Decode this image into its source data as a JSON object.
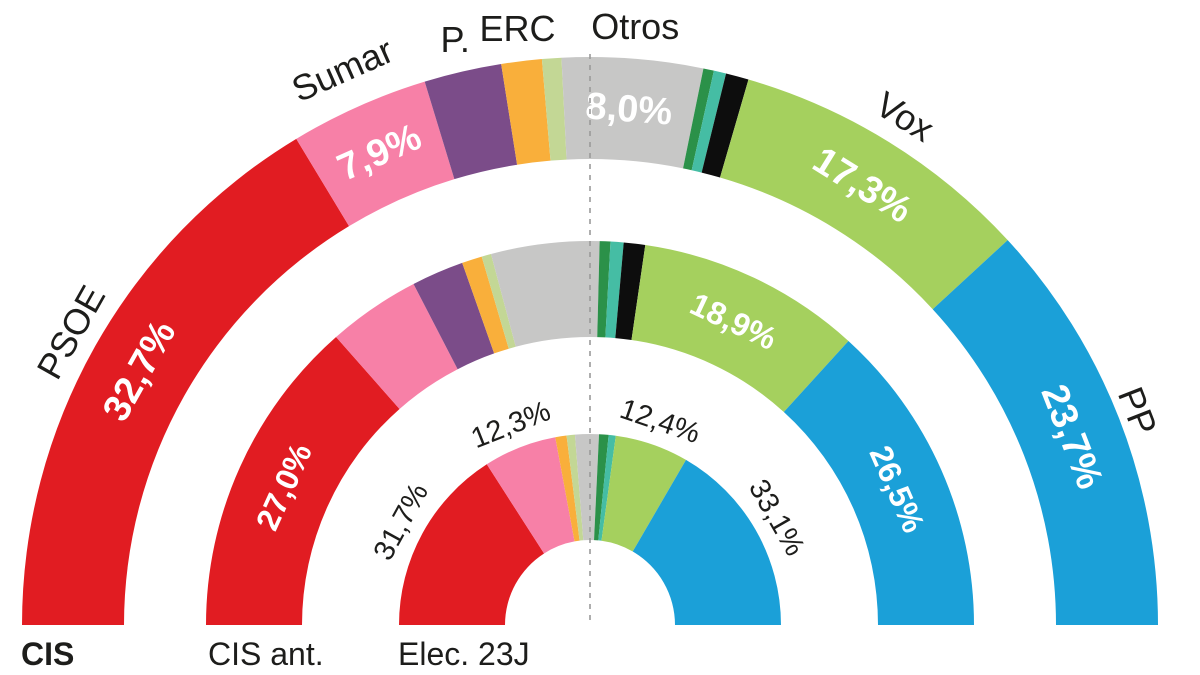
{
  "chart_data": {
    "type": "nested-half-donut",
    "unit": "%",
    "decimal_separator": ",",
    "divider": {
      "style": "dashed",
      "color": "#9a9a9a",
      "position": "50%"
    },
    "colors": {
      "psoe": "#e11c22",
      "sumar": "#f780a7",
      "podemos": "#7b4c89",
      "erc": "#f9af3b",
      "lightgreen": "#c3d795",
      "otros": "#c7c7c6",
      "darkgreen": "#2b9149",
      "teal": "#45bda4",
      "black": "#0d0d0d",
      "vox": "#a5d05e",
      "pp": "#1ba0d8",
      "label_black": "#1d1d1b",
      "label_white": "#ffffff"
    },
    "party_labels": [
      {
        "party": "psoe",
        "text": "PSOE"
      },
      {
        "party": "sumar",
        "text": "Sumar"
      },
      {
        "party": "podemos",
        "text": "P."
      },
      {
        "party": "erc",
        "text": "ERC"
      },
      {
        "party": "otros",
        "text": "Otros"
      },
      {
        "party": "vox",
        "text": "Vox"
      },
      {
        "party": "pp",
        "text": "PP"
      }
    ],
    "rings": [
      {
        "id": "cis",
        "label": "CIS",
        "label_bold": true,
        "segments": [
          {
            "party": "psoe",
            "color_key": "psoe",
            "value": 32.7,
            "label": "32,7%",
            "label_pos": "inside"
          },
          {
            "party": "sumar",
            "color_key": "sumar",
            "value": 7.9,
            "label": "7,9%",
            "label_pos": "inside"
          },
          {
            "party": "podemos",
            "color_key": "podemos",
            "value": 4.4
          },
          {
            "party": "erc",
            "color_key": "erc",
            "value": 2.3
          },
          {
            "party": "",
            "color_key": "lightgreen",
            "value": 1.1
          },
          {
            "party": "otros",
            "color_key": "otros",
            "value": 8.0,
            "label": "8,0%",
            "label_pos": "inside"
          },
          {
            "party": "",
            "color_key": "darkgreen",
            "value": 0.6
          },
          {
            "party": "",
            "color_key": "teal",
            "value": 0.7
          },
          {
            "party": "",
            "color_key": "black",
            "value": 1.3
          },
          {
            "party": "vox",
            "color_key": "vox",
            "value": 17.3,
            "label": "17,3%",
            "label_pos": "inside"
          },
          {
            "party": "pp",
            "color_key": "pp",
            "value": 23.7,
            "label": "23,7%",
            "label_pos": "inside"
          }
        ]
      },
      {
        "id": "cis-ant",
        "label": "CIS ant.",
        "label_bold": false,
        "segments": [
          {
            "party": "psoe",
            "color_key": "psoe",
            "value": 27.0,
            "label": "27,0%",
            "label_pos": "inside"
          },
          {
            "party": "sumar",
            "color_key": "sumar",
            "value": 7.8
          },
          {
            "party": "podemos",
            "color_key": "podemos",
            "value": 4.4
          },
          {
            "party": "erc",
            "color_key": "erc",
            "value": 1.7
          },
          {
            "party": "",
            "color_key": "lightgreen",
            "value": 0.8
          },
          {
            "party": "otros",
            "color_key": "otros",
            "value": 9.1
          },
          {
            "party": "",
            "color_key": "darkgreen",
            "value": 0.9
          },
          {
            "party": "",
            "color_key": "teal",
            "value": 1.1
          },
          {
            "party": "",
            "color_key": "black",
            "value": 1.8
          },
          {
            "party": "vox",
            "color_key": "vox",
            "value": 18.9,
            "label": "18,9%",
            "label_pos": "inside"
          },
          {
            "party": "pp",
            "color_key": "pp",
            "value": 26.5,
            "label": "26,5%",
            "label_pos": "inside"
          }
        ]
      },
      {
        "id": "elec-23j",
        "label": "Elec. 23J",
        "label_bold": false,
        "segments": [
          {
            "party": "psoe",
            "color_key": "psoe",
            "value": 31.7,
            "label": "31,7%",
            "label_pos": "outside"
          },
          {
            "party": "sumar",
            "color_key": "sumar",
            "value": 12.3,
            "label": "12,3%",
            "label_pos": "outside"
          },
          {
            "party": "erc",
            "color_key": "erc",
            "value": 1.9
          },
          {
            "party": "",
            "color_key": "lightgreen",
            "value": 1.4
          },
          {
            "party": "otros",
            "color_key": "otros",
            "value": 4.0
          },
          {
            "party": "",
            "color_key": "darkgreen",
            "value": 1.6
          },
          {
            "party": "",
            "color_key": "teal",
            "value": 1.2
          },
          {
            "party": "vox",
            "color_key": "vox",
            "value": 12.4,
            "label": "12,4%",
            "label_pos": "outside"
          },
          {
            "party": "pp",
            "color_key": "pp",
            "value": 33.1,
            "label": "33,1%",
            "label_pos": "outside"
          }
        ]
      }
    ]
  }
}
